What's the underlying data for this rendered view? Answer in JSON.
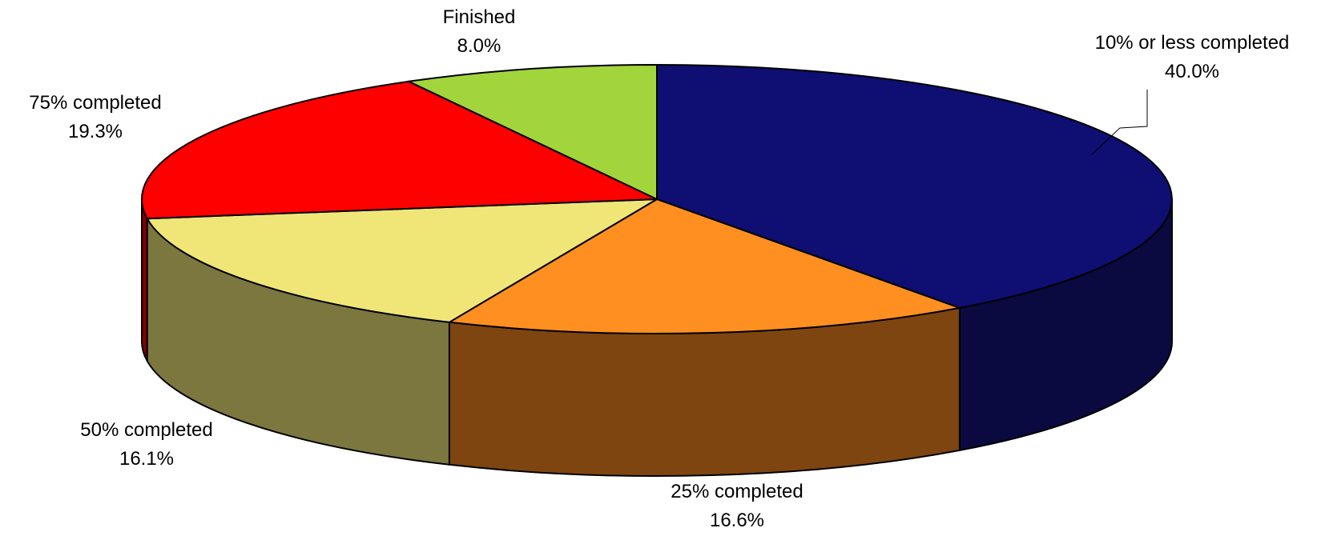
{
  "chart_data": {
    "type": "pie",
    "style": "3d",
    "slices": [
      {
        "name": "10% or less completed",
        "value": 40.0,
        "label": "40.0%",
        "color": "#0e0e73",
        "side_color": "#0a0a40"
      },
      {
        "name": "25% completed",
        "value": 16.6,
        "label": "16.6%",
        "color": "#fe8f20",
        "side_color": "#7f4510"
      },
      {
        "name": "50% completed",
        "value": 16.1,
        "label": "16.1%",
        "color": "#f0e678",
        "side_color": "#7c773f"
      },
      {
        "name": "75% completed",
        "value": 19.3,
        "label": "19.3%",
        "color": "#ff0000",
        "side_color": "#800000"
      },
      {
        "name": "Finished",
        "value": 8.0,
        "label": "8.0%",
        "color": "#a1d53b",
        "side_color": "#50691d"
      }
    ]
  }
}
